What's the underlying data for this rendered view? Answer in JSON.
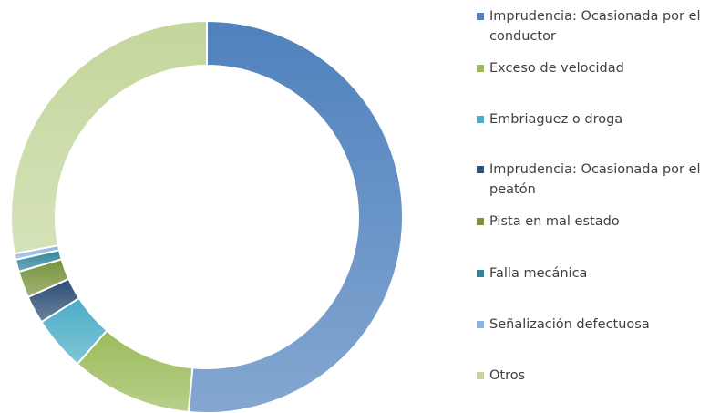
{
  "chart_data": {
    "type": "donut",
    "categories": [
      "Imprudencia: Ocasionada por el conductor",
      "Exceso de velocidad",
      "Embriaguez o droga",
      "Imprudencia: Ocasionada por el peatón",
      "Pista en mal estado",
      "Falla mecánica",
      "Señalización defectuosa",
      "Otros"
    ],
    "values": [
      51.5,
      10,
      4.5,
      2.3,
      2.2,
      1,
      0.5,
      28
    ],
    "colors": [
      "#4f81bd",
      "#9bbb59",
      "#4bacc6",
      "#2c4d75",
      "#77933c",
      "#31859c",
      "#8eb4e3",
      "#c3d69b"
    ],
    "legend": "right"
  }
}
